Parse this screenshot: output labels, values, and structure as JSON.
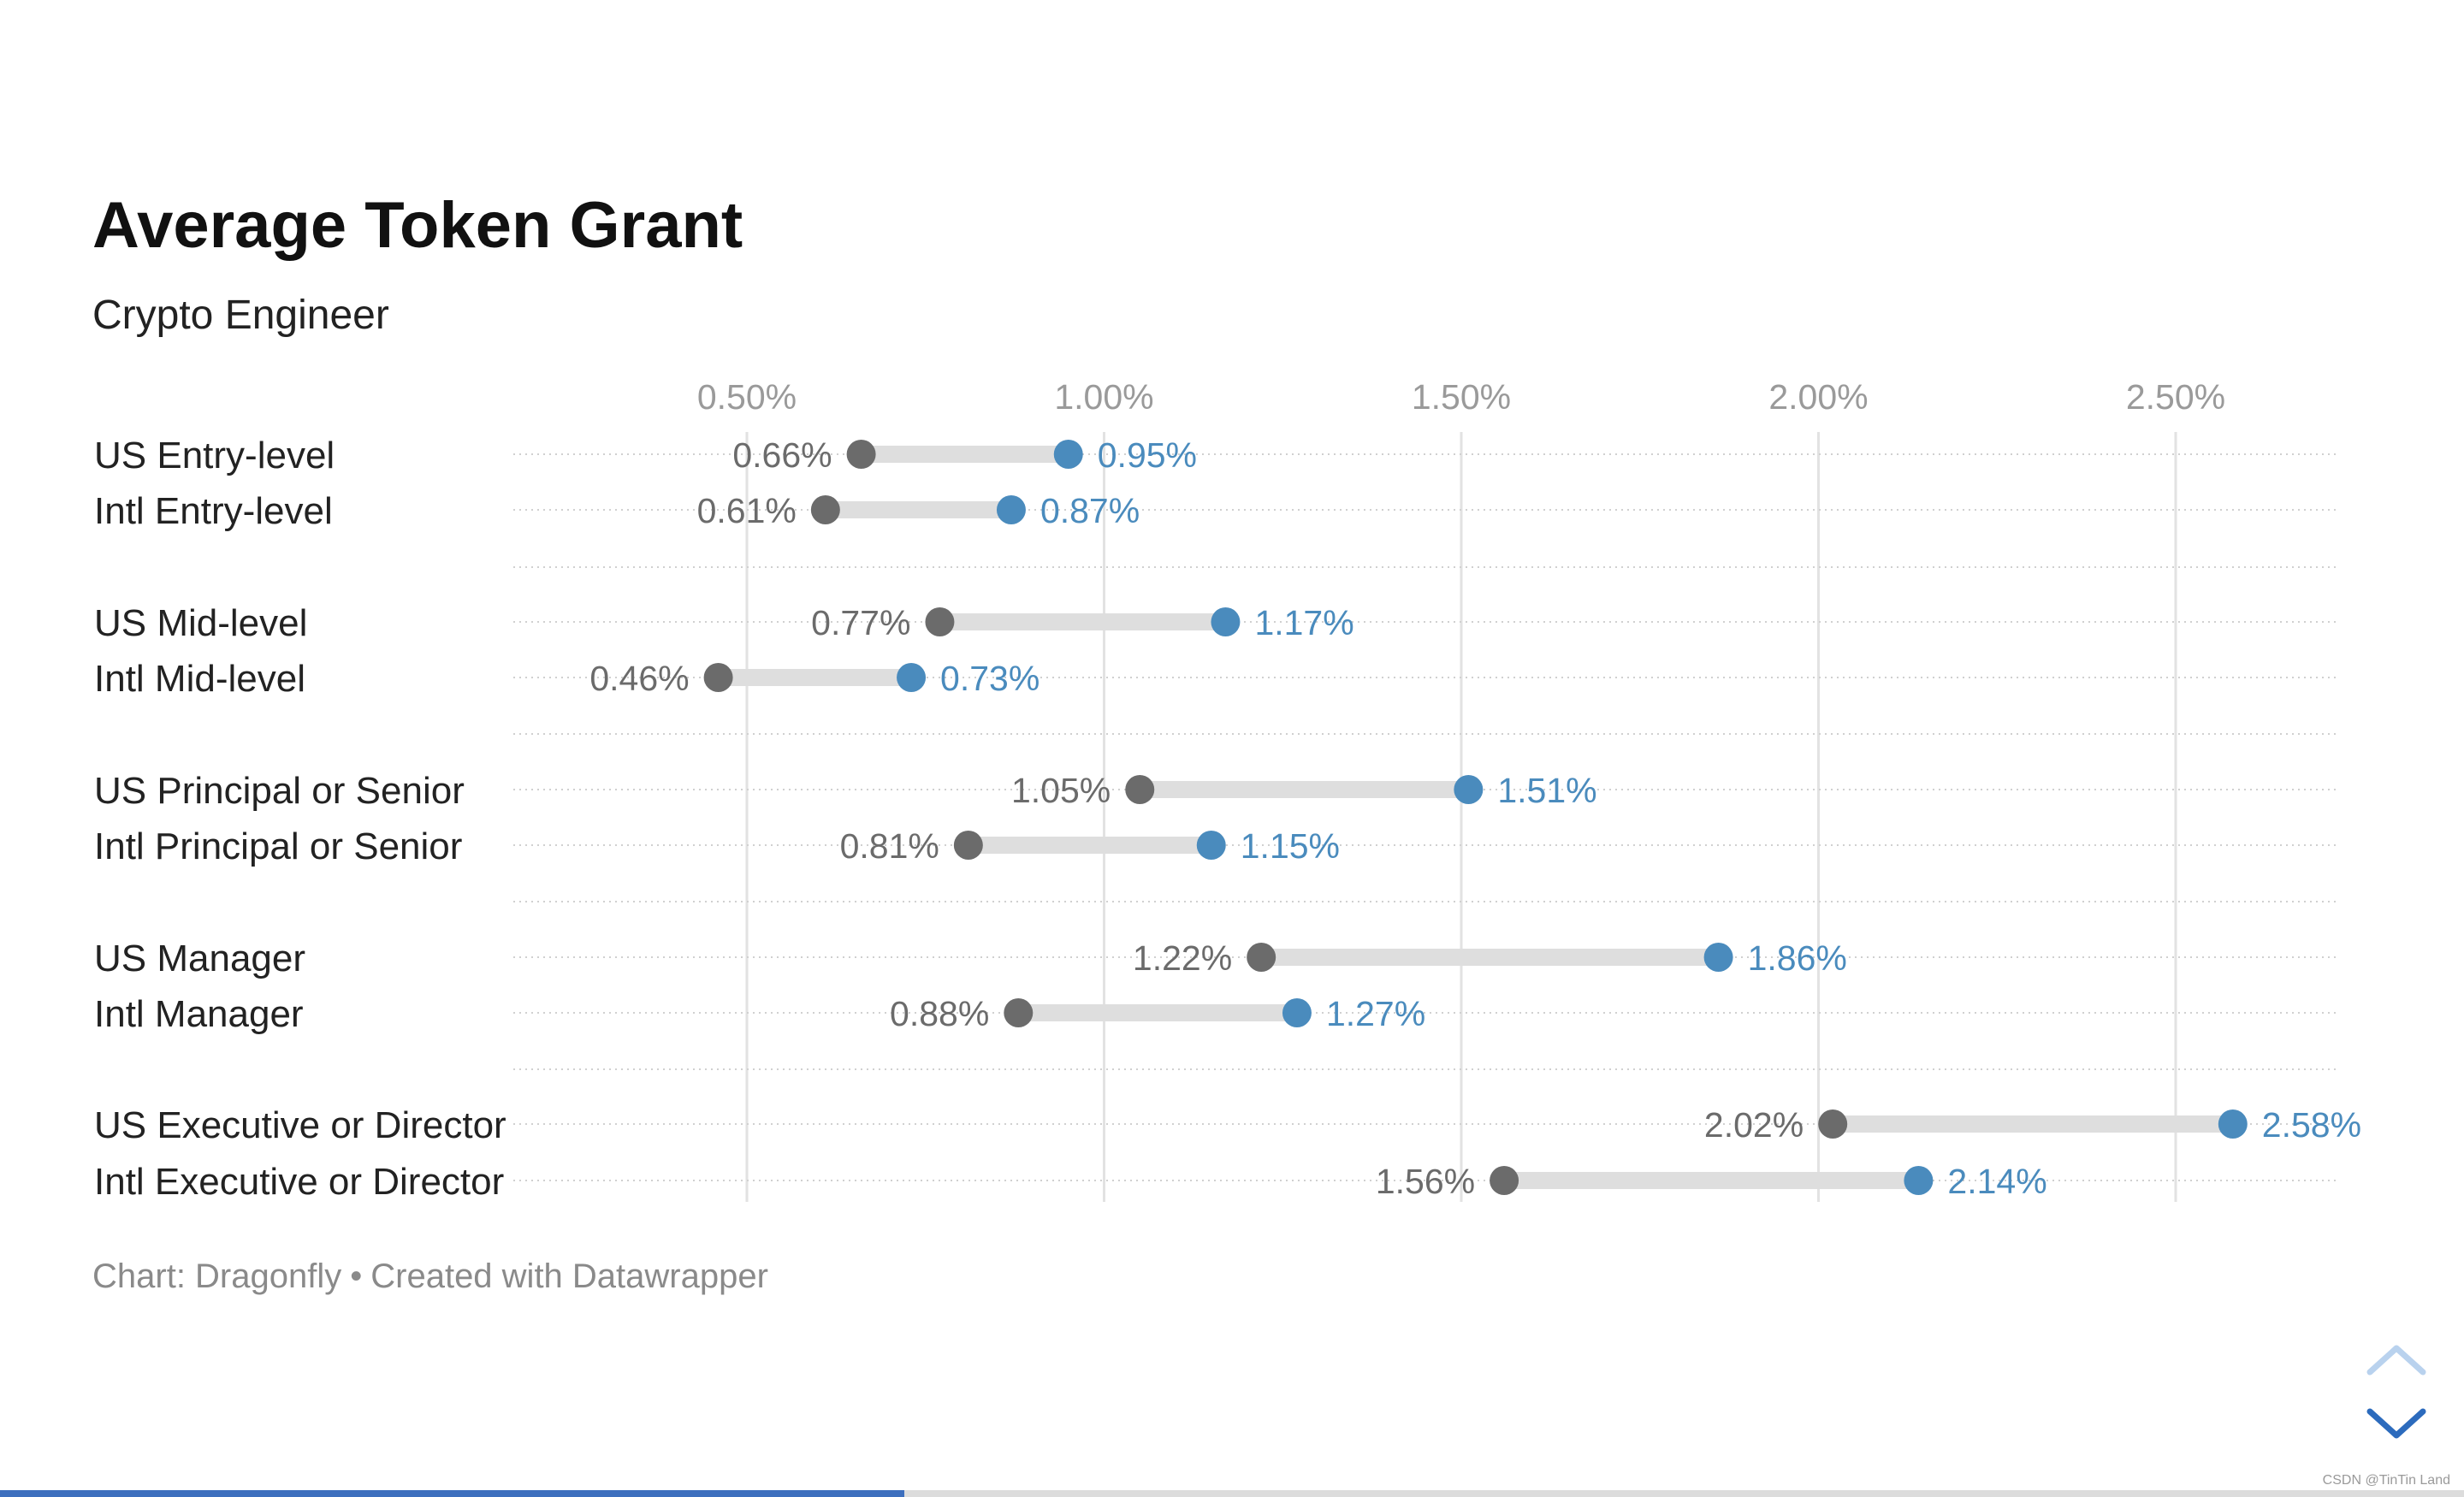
{
  "chart_data": {
    "type": "dot-range",
    "title": "Average Token Grant",
    "subtitle": "Crypto Engineer",
    "xlim": [
      0.17,
      2.73
    ],
    "ticks": [
      0.5,
      1.0,
      1.5,
      2.0,
      2.5
    ],
    "tick_labels": [
      "0.50%",
      "1.00%",
      "1.50%",
      "2.00%",
      "2.50%"
    ],
    "grid": true,
    "groups": [
      {
        "rows": [
          {
            "label": "US Entry-level",
            "low": 0.66,
            "low_label": "0.66%",
            "high": 0.95,
            "high_label": "0.95%"
          },
          {
            "label": "Intl Entry-level",
            "low": 0.61,
            "low_label": "0.61%",
            "high": 0.87,
            "high_label": "0.87%"
          }
        ]
      },
      {
        "rows": [
          {
            "label": "US Mid-level",
            "low": 0.77,
            "low_label": "0.77%",
            "high": 1.17,
            "high_label": "1.17%"
          },
          {
            "label": "Intl Mid-level",
            "low": 0.46,
            "low_label": "0.46%",
            "high": 0.73,
            "high_label": "0.73%"
          }
        ]
      },
      {
        "rows": [
          {
            "label": "US Principal or Senior",
            "low": 1.05,
            "low_label": "1.05%",
            "high": 1.51,
            "high_label": "1.51%"
          },
          {
            "label": "Intl Principal or Senior",
            "low": 0.81,
            "low_label": "0.81%",
            "high": 1.15,
            "high_label": "1.15%"
          }
        ]
      },
      {
        "rows": [
          {
            "label": "US Manager",
            "low": 1.22,
            "low_label": "1.22%",
            "high": 1.86,
            "high_label": "1.86%"
          },
          {
            "label": "Intl Manager",
            "low": 0.88,
            "low_label": "0.88%",
            "high": 1.27,
            "high_label": "1.27%"
          }
        ]
      },
      {
        "rows": [
          {
            "label": "US Executive or Director",
            "low": 2.02,
            "low_label": "2.02%",
            "high": 2.58,
            "high_label": "2.58%"
          },
          {
            "label": "Intl Executive or Director",
            "low": 1.56,
            "low_label": "1.56%",
            "high": 2.14,
            "high_label": "2.14%"
          }
        ]
      }
    ],
    "colors": {
      "low": "#6b6b6b",
      "high": "#4a8bbd",
      "range_bar": "#dedede",
      "grid": "#e2e2e2",
      "tick_text": "#9a9a9a",
      "row_label": "#222222"
    }
  },
  "footer": {
    "source": "Chart: Dragonfly",
    "separator": "•",
    "credit": "Created with Datawrapper"
  },
  "nav": {
    "up_icon": "chevron-up-icon",
    "down_icon": "chevron-down-icon",
    "up_color": "#b9d2ee",
    "down_color": "#2c6bbd"
  },
  "progress": {
    "fraction": 0.367
  },
  "watermark": "CSDN @TinTin Land"
}
